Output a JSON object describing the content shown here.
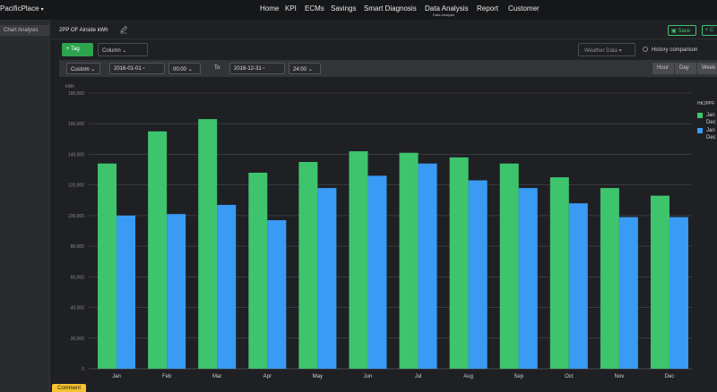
{
  "app": {
    "brand": "PacificPlace",
    "brand_caret": "▾"
  },
  "nav": {
    "items": [
      "Home",
      "KPI",
      "ECMs",
      "Savings",
      "Smart Diagnosis",
      "Data Analysis",
      "Report",
      "Customer"
    ],
    "active_sub": "Data Analysis"
  },
  "sidebar": {
    "items": [
      {
        "label": "Chart Analysis"
      }
    ]
  },
  "toolbar": {
    "title": "2PP OF Airside kWh",
    "save_label": "Save",
    "copy_label": "+ C",
    "tag_label": "+  Tag",
    "chart_type": "Column",
    "weather_placeholder": "Weather Data",
    "history_label": "History comparison"
  },
  "filters": {
    "range_type": "Custom",
    "start_date": "2016-01-01",
    "start_time": "00:00",
    "to_label": "To",
    "end_date": "2016-12-31",
    "end_time": "24:00",
    "granularity": [
      "Hour",
      "Day",
      "Week"
    ]
  },
  "legend": {
    "title": "HK2PPF",
    "items": [
      {
        "line1": "Jan",
        "line2": "Dec",
        "color": "#3ec46d"
      },
      {
        "line1": "Jan",
        "line2": "Dec",
        "color": "#3a9bf5"
      }
    ]
  },
  "comment_label": "Comment",
  "colors": {
    "accent_green": "#3ec46d",
    "bar_green": "#3ec46d",
    "bar_blue": "#3a9bf5"
  },
  "chart_data": {
    "type": "bar",
    "ylabel": "kWh",
    "ylim": [
      0,
      180000
    ],
    "yticks": [
      "0",
      "20,000",
      "40,000",
      "60,000",
      "80,000",
      "100,000",
      "120,000",
      "140,000",
      "160,000",
      "180,000"
    ],
    "categories": [
      "Jan",
      "Feb",
      "Mar",
      "Apr",
      "May",
      "Jun",
      "Jul",
      "Aug",
      "Sep",
      "Oct",
      "Nov",
      "Dec"
    ],
    "series": [
      {
        "values": [
          134000,
          155000,
          163000,
          128000,
          135000,
          142000,
          141000,
          138000,
          134000,
          125000,
          118000,
          113000
        ]
      },
      {
        "values": [
          100000,
          101000,
          107000,
          97000,
          118000,
          126000,
          134000,
          123000,
          118000,
          108000,
          99000,
          99000
        ]
      }
    ],
    "grid": true,
    "legend_position": "right"
  }
}
